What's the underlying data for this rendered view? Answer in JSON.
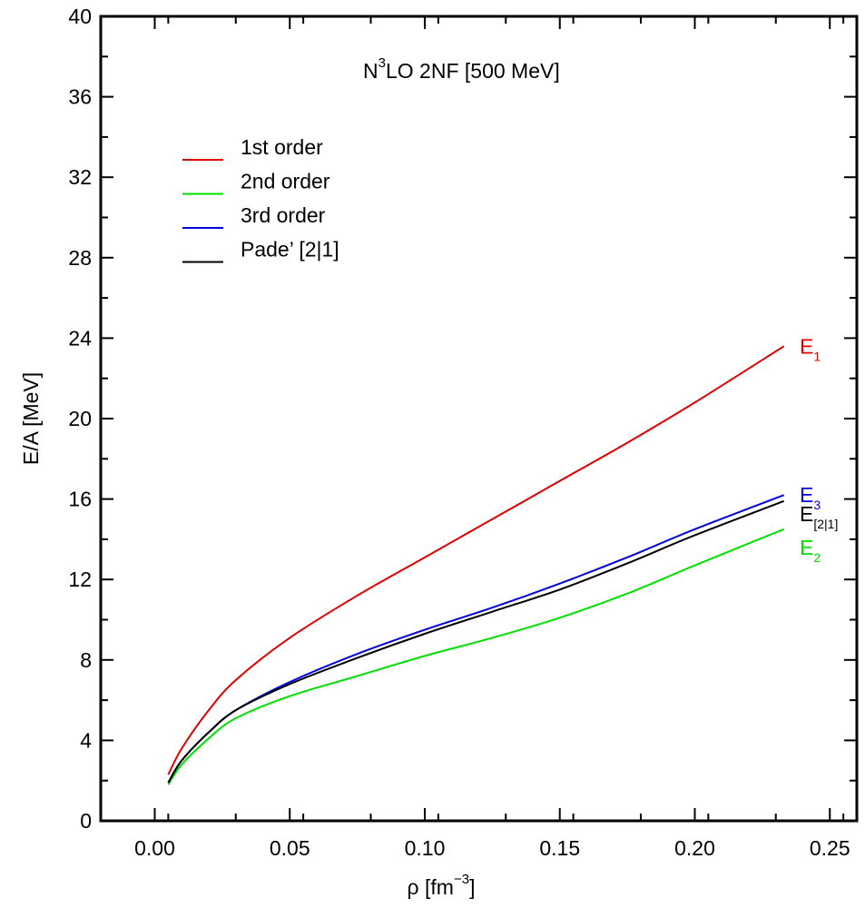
{
  "chart_data": {
    "type": "line",
    "title": "LO 2NF [500 MeV]",
    "title_prefix": "N",
    "title_superscript": "3",
    "xlabel": {
      "main": "ρ [fm",
      "superscript": "−3",
      "suffix": "]"
    },
    "ylabel": "E/A [MeV]",
    "xlim": [
      -0.02,
      0.26
    ],
    "ylim": [
      0,
      40
    ],
    "x_ticks": [
      0.0,
      0.05,
      0.1,
      0.15,
      0.2,
      0.25
    ],
    "x_tick_labels": [
      "0.00",
      "0.05",
      "0.10",
      "0.15",
      "0.20",
      "0.25"
    ],
    "y_ticks": [
      0,
      4,
      8,
      12,
      16,
      20,
      24,
      28,
      32,
      36,
      40
    ],
    "y_tick_labels": [
      "0",
      "4",
      "8",
      "12",
      "16",
      "20",
      "24",
      "28",
      "32",
      "36",
      "40"
    ],
    "grid": false,
    "legend_position": "top-left",
    "x": [
      0.005,
      0.01,
      0.02,
      0.03,
      0.05,
      0.075,
      0.1,
      0.125,
      0.15,
      0.175,
      0.2,
      0.233
    ],
    "series": [
      {
        "name": "1st order",
        "color": "#e00000",
        "end_label": "E",
        "end_label_sub": "1",
        "values": [
          2.3,
          3.6,
          5.5,
          7.0,
          9.1,
          11.2,
          13.1,
          15.0,
          16.9,
          18.8,
          20.8,
          23.6
        ]
      },
      {
        "name": "2nd order",
        "color": "#00e000",
        "end_label": "E",
        "end_label_sub": "2",
        "values": [
          1.8,
          2.8,
          4.1,
          5.1,
          6.2,
          7.2,
          8.2,
          9.1,
          10.1,
          11.3,
          12.7,
          14.5
        ]
      },
      {
        "name": "3rd order",
        "color": "#0000e0",
        "end_label": "E",
        "end_label_sub": "3",
        "values": [
          1.9,
          3.0,
          4.4,
          5.5,
          6.9,
          8.3,
          9.5,
          10.6,
          11.8,
          13.1,
          14.5,
          16.2
        ]
      },
      {
        "name": "Pade’ [2|1]",
        "color": "#000000",
        "end_label": "E",
        "end_label_sub": "[2|1]",
        "values": [
          1.9,
          3.0,
          4.4,
          5.5,
          6.8,
          8.1,
          9.3,
          10.4,
          11.5,
          12.8,
          14.2,
          15.9
        ]
      }
    ]
  }
}
